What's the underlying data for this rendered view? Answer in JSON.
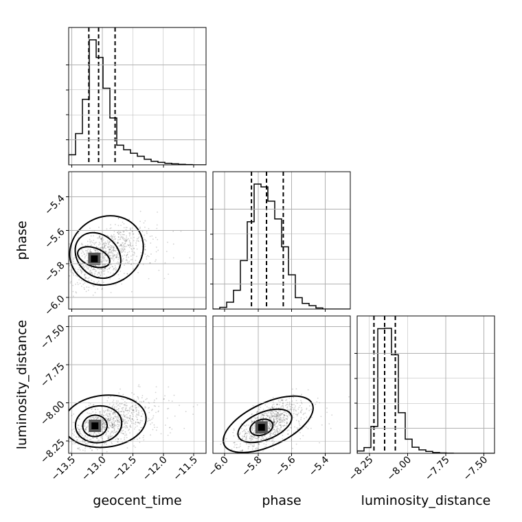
{
  "chart_data": {
    "type": "corner",
    "parameters": [
      "geocent_time",
      "phase",
      "luminosity_distance"
    ],
    "axis_labels": {
      "bottom": [
        "geocent_time",
        "phase",
        "luminosity_distance"
      ],
      "left": [
        "phase",
        "luminosity_distance"
      ]
    },
    "grid": true,
    "ranges": {
      "geocent_time": [
        -13.55,
        -11.3
      ],
      "phase": [
        -6.07,
        -5.25
      ],
      "luminosity_distance": [
        -8.33,
        -7.43
      ]
    },
    "ticks": {
      "geocent_time": [
        -13.5,
        -13.0,
        -12.5,
        -12.0,
        -11.5
      ],
      "phase": [
        -6.0,
        -5.8,
        -5.6,
        -5.4
      ],
      "luminosity_distance": [
        -8.25,
        -8.0,
        -7.75,
        -7.5
      ]
    },
    "tick_labels": {
      "geocent_time": [
        "−13.5",
        "−13.0",
        "−12.5",
        "−12.0",
        "−11.5"
      ],
      "phase": [
        "−6.0",
        "−5.8",
        "−5.6",
        "−5.4"
      ],
      "luminosity_distance": [
        "−8.25",
        "−8.00",
        "−7.75",
        "−7.50"
      ]
    },
    "histograms": {
      "geocent_time": {
        "bin_edges": [
          -13.55,
          -13.4375,
          -13.325,
          -13.2125,
          -13.1,
          -12.9875,
          -12.875,
          -12.7625,
          -12.65,
          -12.5375,
          -12.425,
          -12.3125,
          -12.2,
          -12.0875,
          -11.975,
          -11.8625,
          -11.75,
          -11.6375,
          -11.525,
          -11.4125,
          -11.3
        ],
        "counts": [
          200,
          620,
          1300,
          2480,
          2130,
          1520,
          930,
          390,
          300,
          230,
          170,
          110,
          70,
          50,
          30,
          20,
          10,
          5,
          0,
          0
        ],
        "quantiles": [
          -13.22,
          -13.06,
          -12.79
        ]
      },
      "phase": {
        "bin_edges": [
          -6.07,
          -6.029,
          -5.988,
          -5.947,
          -5.906,
          -5.865,
          -5.824,
          -5.783,
          -5.742,
          -5.701,
          -5.66,
          -5.619,
          -5.578,
          -5.537,
          -5.496,
          -5.455,
          -5.414,
          -5.373,
          -5.332,
          -5.291,
          -5.25
        ],
        "counts": [
          0,
          30,
          120,
          330,
          850,
          1530,
          2190,
          2140,
          1890,
          1580,
          1090,
          600,
          200,
          100,
          60,
          20,
          0,
          0,
          0,
          0
        ],
        "quantiles": [
          -5.84,
          -5.75,
          -5.65
        ]
      },
      "luminosity_distance": {
        "bin_edges": [
          -8.33,
          -8.285,
          -8.24,
          -8.195,
          -8.15,
          -8.105,
          -8.06,
          -8.015,
          -7.97,
          -7.925,
          -7.88,
          -7.835,
          -7.79,
          -7.745,
          -7.7,
          -7.655,
          -7.61,
          -7.565,
          -7.52,
          -7.475,
          -7.43
        ],
        "counts": [
          60,
          150,
          700,
          3250,
          3260,
          2570,
          1060,
          370,
          160,
          90,
          50,
          20,
          10,
          5,
          0,
          0,
          0,
          0,
          0,
          0
        ],
        "quantiles": [
          -8.22,
          -8.15,
          -8.08
        ]
      }
    },
    "joint": [
      {
        "x": "geocent_time",
        "y": "phase",
        "mean": [
          -13.0,
          -5.75
        ],
        "sd": [
          0.3,
          0.09
        ],
        "rho": 0.6,
        "mode": [
          -13.13,
          -5.77
        ],
        "levels": [
          {
            "center": [
              -13.14,
              -5.76
            ],
            "semi_axes": [
              0.15,
              0.1
            ],
            "angle": 70
          },
          {
            "center": [
              -13.07,
              -5.75
            ],
            "semi_axes": [
              0.33,
              0.15
            ],
            "angle": 45
          },
          {
            "center": [
              -12.93,
              -5.72
            ],
            "semi_axes": [
              0.62,
              0.2
            ],
            "angle": 30
          }
        ]
      },
      {
        "x": "geocent_time",
        "y": "luminosity_distance",
        "mean": [
          -12.95,
          -8.13
        ],
        "sd": [
          0.3,
          0.08
        ],
        "rho": 0.55,
        "mode": [
          -13.12,
          -8.15
        ],
        "levels": [
          {
            "center": [
              -13.12,
              -8.15
            ],
            "semi_axes": [
              0.2,
              0.07
            ],
            "angle": 5
          },
          {
            "center": [
              -13.06,
              -8.14
            ],
            "semi_axes": [
              0.38,
              0.12
            ],
            "angle": 8
          },
          {
            "center": [
              -12.96,
              -8.12
            ],
            "semi_axes": [
              0.68,
              0.17
            ],
            "angle": 6
          }
        ]
      },
      {
        "x": "phase",
        "y": "luminosity_distance",
        "mean": [
          -5.75,
          -8.14
        ],
        "sd": [
          0.09,
          0.08
        ],
        "rho": 0.7,
        "mode": [
          -5.78,
          -8.16
        ],
        "levels": [
          {
            "center": [
              -5.78,
              -8.16
            ],
            "semi_axes": [
              0.07,
              0.05
            ],
            "angle": 18
          },
          {
            "center": [
              -5.76,
              -8.15
            ],
            "semi_axes": [
              0.17,
              0.09
            ],
            "angle": 22
          },
          {
            "center": [
              -5.74,
              -8.14
            ],
            "semi_axes": [
              0.29,
              0.14
            ],
            "angle": 25
          }
        ]
      }
    ]
  }
}
